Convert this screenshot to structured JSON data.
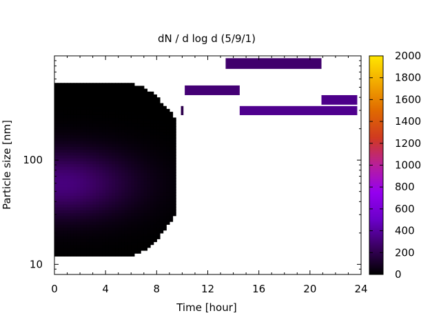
{
  "chart_data": {
    "type": "heatmap",
    "title": "dN / d log d (5/9/1)",
    "xlabel": "Time [hour]",
    "ylabel": "Particle size [nm]",
    "xlim": [
      0,
      24
    ],
    "ylim": [
      8,
      1000
    ],
    "yscale": "log",
    "x_ticks": [
      "0",
      "4",
      "8",
      "12",
      "16",
      "20",
      "24"
    ],
    "x_tick_values": [
      0,
      4,
      8,
      12,
      16,
      20,
      24
    ],
    "y_ticks": [
      "10",
      "100"
    ],
    "y_tick_values": [
      10,
      100
    ],
    "colorbar": {
      "range": [
        0,
        2000
      ],
      "ticks": [
        "0",
        "200",
        "400",
        "600",
        "800",
        "1000",
        "1200",
        "1400",
        "1600",
        "1800",
        "2000"
      ],
      "tick_values": [
        0,
        200,
        400,
        600,
        800,
        1000,
        1200,
        1400,
        1600,
        1800,
        2000
      ],
      "palette": "gnuplot rgbformulae 7,5,15",
      "stops": [
        "#000000",
        "#3a0060",
        "#6a00c8",
        "#9500f0",
        "#b81f9a",
        "#d03a20",
        "#e06a00",
        "#f2a800",
        "#ffe600"
      ]
    },
    "main_cloud": {
      "time_start": 0,
      "time_end": 9.3,
      "size_min_nm": 12,
      "size_max_nm": 550,
      "peak_value": 320,
      "peak_time": 0.5,
      "peak_size_nm": 60
    },
    "segments": [
      {
        "t0": 13.4,
        "t1": 20.9,
        "d0": 750,
        "d1": 950,
        "value": 280
      },
      {
        "t0": 10.2,
        "t1": 14.5,
        "d0": 420,
        "d1": 520,
        "value": 300
      },
      {
        "t0": 20.9,
        "t1": 23.7,
        "d0": 340,
        "d1": 420,
        "value": 350
      },
      {
        "t0": 14.5,
        "t1": 23.7,
        "d0": 270,
        "d1": 330,
        "value": 360
      },
      {
        "t0": 9.9,
        "t1": 10.1,
        "d0": 270,
        "d1": 330,
        "value": 200
      }
    ]
  }
}
